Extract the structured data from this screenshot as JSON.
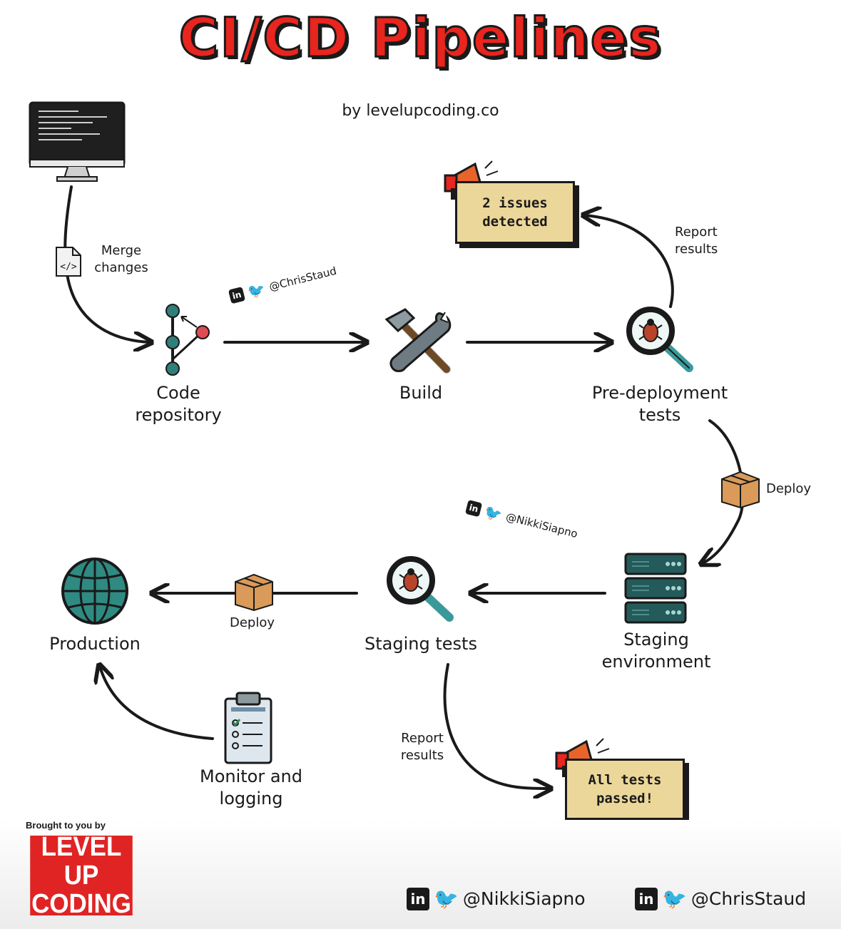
{
  "title": "CI/CD Pipelines",
  "byline": "by levelupcoding.co",
  "nodes": {
    "code_repository": "Code\nrepository",
    "build": "Build",
    "pre_deployment_tests": "Pre-deployment\ntests",
    "staging_environment": "Staging\nenvironment",
    "staging_tests": "Staging tests",
    "production": "Production",
    "monitor_logging": "Monitor and\nlogging"
  },
  "edge_labels": {
    "merge_changes": "Merge\nchanges",
    "report_results_top": "Report\nresults",
    "deploy_right": "Deploy",
    "deploy_bottom": "Deploy",
    "report_results_bottom": "Report\nresults"
  },
  "notes": {
    "issues": "2 issues\ndetected",
    "passed": "All tests\npassed!"
  },
  "handles": {
    "chris": "@ChrisStaud",
    "nikki": "@NikkiSiapno"
  },
  "footer": {
    "brought": "Brought to you by",
    "logo_line1": "LEVEL UP",
    "logo_line2": "CODING",
    "nikki": "@NikkiSiapno",
    "chris": "@ChrisStaud",
    "linkedin_glyph": "in"
  },
  "colors": {
    "title_red": "#e8251e",
    "note_fill": "#ecd79a",
    "teal": "#2f7f7a",
    "logo_red": "#e02424"
  }
}
